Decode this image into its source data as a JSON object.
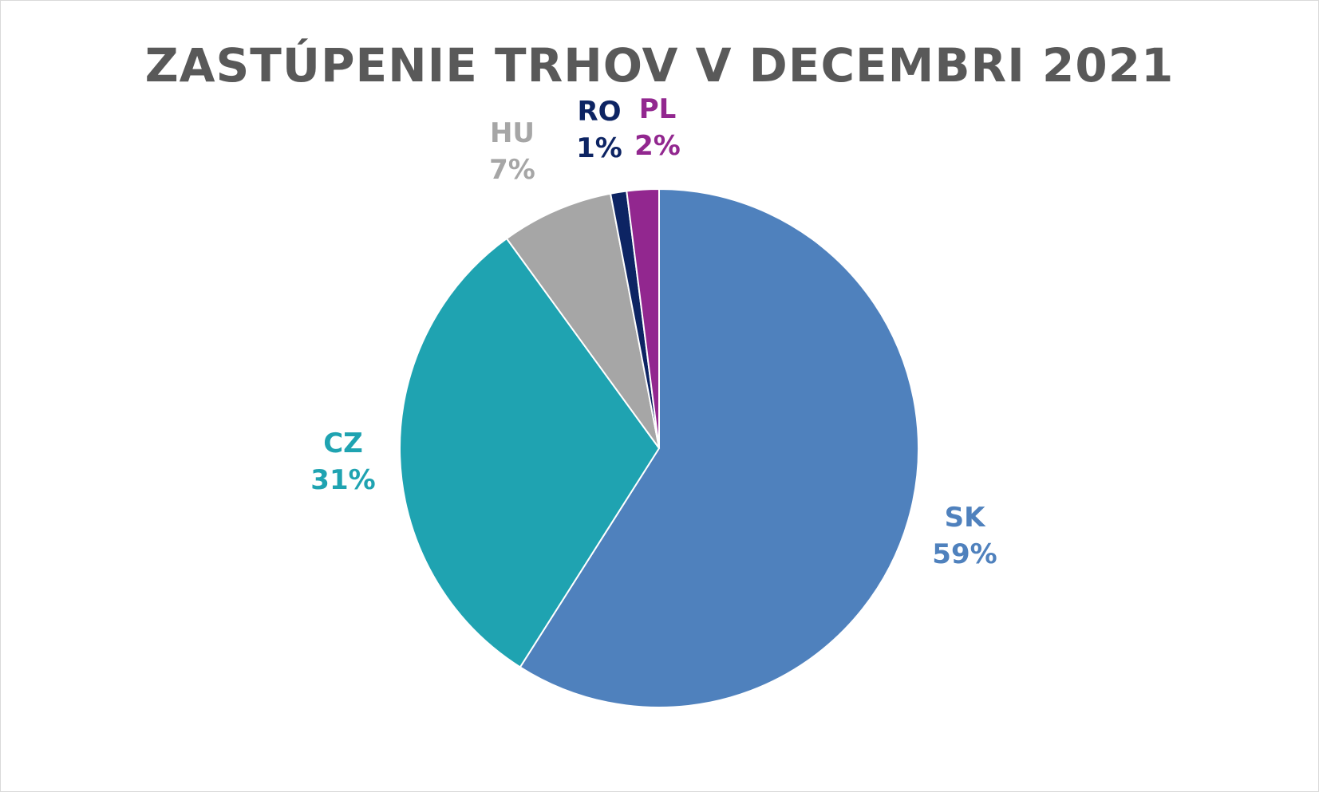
{
  "chart_data": {
    "type": "pie",
    "title": "ZASTÚPENIE TRHOV V DECEMBRI 2021",
    "categories": [
      "SK",
      "CZ",
      "HU",
      "RO",
      "PL"
    ],
    "values": [
      59,
      31,
      7,
      1,
      2
    ],
    "value_labels": [
      "59%",
      "31%",
      "7%",
      "1%",
      "2%"
    ],
    "colors": [
      "#4f81bd",
      "#1fa3b1",
      "#a6a6a6",
      "#0d2463",
      "#92278f"
    ],
    "start_angle_deg": 0,
    "direction": "clockwise",
    "legend": "none",
    "data_labels": "outside"
  }
}
